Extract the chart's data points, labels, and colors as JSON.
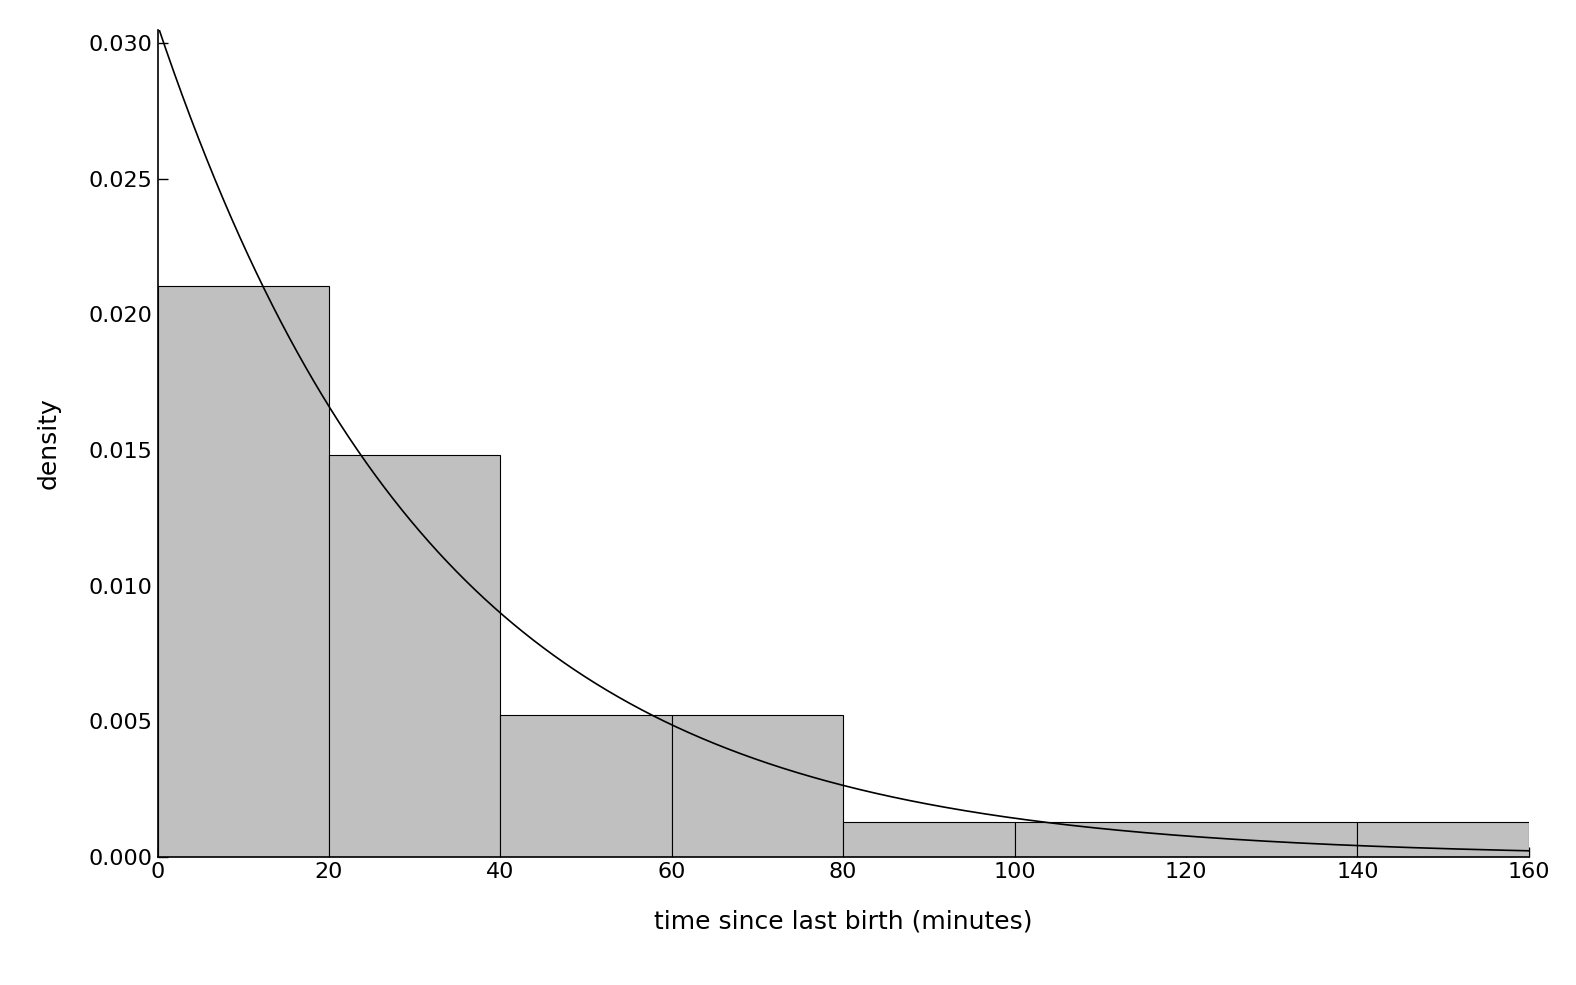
{
  "title": "",
  "xlabel": "time since last birth (minutes)",
  "ylabel": "density",
  "xlim": [
    0,
    160
  ],
  "ylim": [
    0,
    0.0305
  ],
  "xticks": [
    0,
    20,
    40,
    60,
    80,
    100,
    120,
    140,
    160
  ],
  "yticks": [
    0.0,
    0.005,
    0.01,
    0.015,
    0.02,
    0.025,
    0.03
  ],
  "ytick_labels": [
    "0.000",
    "0.005",
    "0.010",
    "0.015",
    "0.020",
    "0.025",
    "0.030"
  ],
  "bar_edges": [
    0,
    20,
    40,
    60,
    80,
    100,
    140,
    160
  ],
  "bar_heights": [
    0.02105,
    0.0148,
    0.00525,
    0.00525,
    0.0013,
    0.0013,
    0.0013
  ],
  "bar_color": "#c0c0c0",
  "bar_edgecolor": "#000000",
  "curve_color": "#000000",
  "lambda_per_hour": 1.84,
  "background_color": "#ffffff",
  "figsize": [
    15.76,
    9.85
  ],
  "dpi": 100
}
